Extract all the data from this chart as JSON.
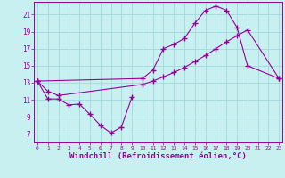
{
  "background_color": "#c8f0f0",
  "grid_color": "#a0d8dc",
  "line_color": "#990099",
  "xlabel": "Windchill (Refroidissement éolien,°C)",
  "xlabel_fontsize": 6.5,
  "tick_fontsize": 5.5,
  "yticks": [
    7,
    9,
    11,
    13,
    15,
    17,
    19,
    21
  ],
  "xticks": [
    0,
    1,
    2,
    3,
    4,
    5,
    6,
    7,
    8,
    9,
    10,
    11,
    12,
    13,
    14,
    15,
    16,
    17,
    18,
    19,
    20,
    21,
    22,
    23
  ],
  "series1_x": [
    0,
    1,
    2,
    3,
    4,
    5,
    6,
    7,
    8,
    9
  ],
  "series1_y": [
    13.2,
    11.1,
    11.1,
    10.4,
    10.5,
    9.3,
    8.0,
    7.1,
    7.8,
    11.3
  ],
  "series2_x": [
    0,
    10,
    11,
    12,
    13,
    14,
    15,
    16,
    17,
    18,
    19,
    20,
    23
  ],
  "series2_y": [
    13.2,
    13.5,
    14.5,
    17.0,
    17.5,
    18.2,
    20.0,
    21.5,
    22.0,
    21.5,
    19.5,
    15.0,
    13.5
  ],
  "series3_x": [
    0,
    1,
    2,
    10,
    11,
    12,
    13,
    14,
    15,
    16,
    17,
    18,
    19,
    20,
    23
  ],
  "series3_y": [
    13.2,
    12.0,
    11.5,
    12.8,
    13.2,
    13.7,
    14.2,
    14.8,
    15.5,
    16.2,
    17.0,
    17.8,
    18.5,
    19.2,
    13.5
  ]
}
